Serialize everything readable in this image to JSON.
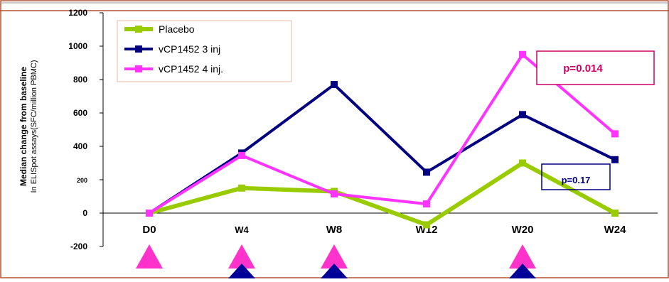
{
  "chart_data": {
    "type": "line",
    "title": "",
    "categories": [
      "D0",
      "W4",
      "W8",
      "W12",
      "W20",
      "W24"
    ],
    "ylabel_main": "Median change from baseline",
    "ylabel_sub": "In ELISpot assays(SFC/million PBMC)",
    "yticks": [
      "1200",
      "1000",
      "800",
      "600",
      "400",
      "200",
      "0",
      "-200"
    ],
    "ylim": [
      -200,
      1200
    ],
    "legend_position": "top-left",
    "grid": false,
    "series": [
      {
        "name": "Placebo",
        "color": "#99cc00",
        "values": [
          0,
          150,
          130,
          -70,
          300,
          0
        ]
      },
      {
        "name": "vCP1452 3 inj",
        "color": "#000080",
        "values": [
          0,
          360,
          770,
          245,
          590,
          320
        ]
      },
      {
        "name": "vCP1452 4 inj.",
        "color": "#ff33ff",
        "values": [
          0,
          345,
          115,
          55,
          950,
          475
        ]
      }
    ],
    "annotations": [
      {
        "text": "p=0.014",
        "color": "#cc0066"
      },
      {
        "text": "p=0.17",
        "color": "#000080"
      }
    ],
    "injection_markers": {
      "pink": {
        "color": "#ff33cc",
        "categories": [
          "D0",
          "W4",
          "W8",
          "W20"
        ]
      },
      "navy": {
        "color": "#000099",
        "categories": [
          "W4",
          "W8",
          "W20"
        ]
      }
    }
  }
}
